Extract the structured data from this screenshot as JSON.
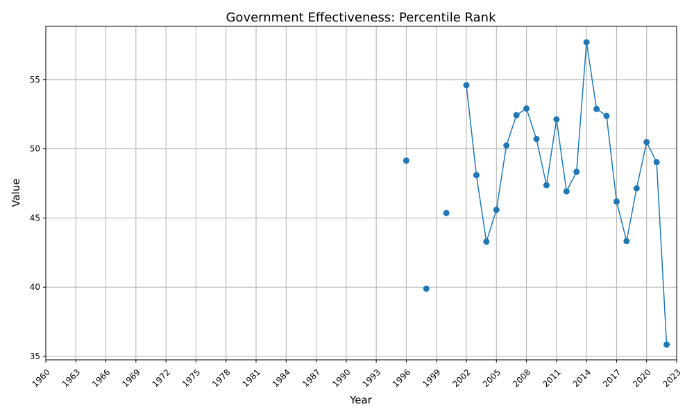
{
  "chart_data": {
    "type": "line",
    "title": "Government Effectiveness: Percentile Rank",
    "xlabel": "Year",
    "ylabel": "Value",
    "xlim": [
      1960,
      2023
    ],
    "ylim": [
      34.75,
      58.85
    ],
    "x_ticks": [
      1960,
      1963,
      1966,
      1969,
      1972,
      1975,
      1978,
      1981,
      1984,
      1987,
      1990,
      1993,
      1996,
      1999,
      2002,
      2005,
      2008,
      2011,
      2014,
      2017,
      2020,
      2023
    ],
    "y_ticks": [
      35,
      40,
      45,
      50,
      55
    ],
    "grid": true,
    "color": "#1f77b4",
    "series": [
      {
        "x": [
          1996,
          1998,
          2000,
          2002,
          2003,
          2004,
          2005,
          2006,
          2007,
          2008,
          2009,
          2010,
          2011,
          2012,
          2013,
          2014,
          2015,
          2016,
          2017,
          2018,
          2019,
          2020,
          2021,
          2022
        ],
        "values": [
          49.15,
          39.89,
          45.36,
          54.6,
          48.1,
          43.29,
          45.59,
          50.24,
          52.43,
          52.91,
          50.71,
          47.37,
          52.13,
          46.92,
          48.34,
          57.7,
          52.88,
          52.38,
          46.19,
          43.33,
          47.14,
          50.48,
          49.04,
          35.85
        ]
      }
    ]
  }
}
